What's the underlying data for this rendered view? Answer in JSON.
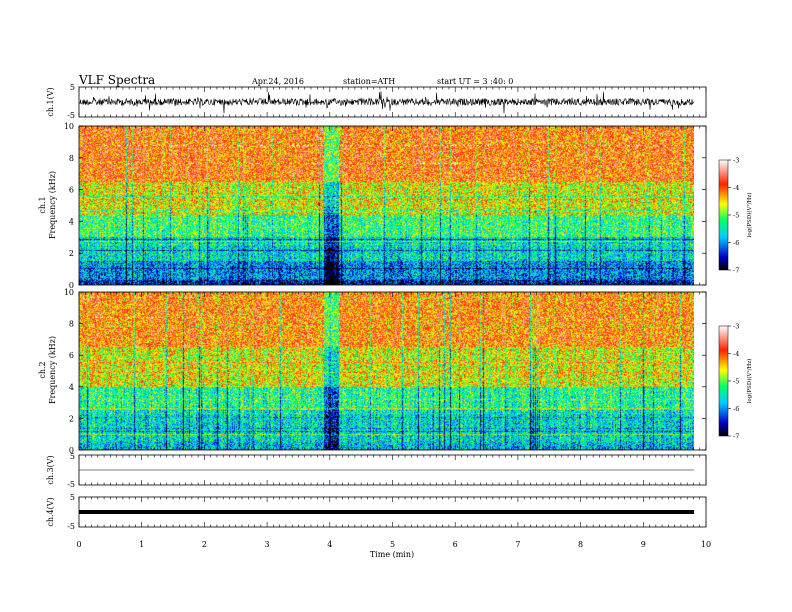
{
  "header": {
    "title": "VLF  Spectra",
    "date": "Apr.24, 2016",
    "station": "station=ATH",
    "start": "start  UT =  3 :40: 0"
  },
  "chart_data": [
    {
      "type": "line",
      "id": "ch1",
      "ylabel": "ch.1(V)",
      "ylim": [
        -5,
        5
      ],
      "yticks": [
        "5",
        "-5"
      ],
      "xlim": [
        0,
        10
      ]
    },
    {
      "type": "heatmap",
      "id": "spec1",
      "ylabel": "ch.1",
      "ylabel2": "Frequency (kHz)",
      "ylim": [
        0,
        10
      ],
      "yticks": [
        "0",
        "2",
        "4",
        "6",
        "8",
        "10"
      ],
      "xlim": [
        0,
        10
      ],
      "colorbar": {
        "ticks": [
          "-3",
          "-4",
          "-5",
          "-6",
          "-7"
        ],
        "label": "log(PSD)(V²/Hz)",
        "range": [
          -7,
          -3
        ]
      },
      "bands": [
        {
          "freq": [
            0,
            0.3
          ],
          "level": -6.5
        },
        {
          "freq": [
            0.3,
            1.5
          ],
          "level": -6.0
        },
        {
          "freq": [
            1.5,
            3.0
          ],
          "level": -5.6
        },
        {
          "freq": [
            3.0,
            4.5
          ],
          "level": -5.2
        },
        {
          "freq": [
            4.5,
            6.5
          ],
          "level": -4.6
        },
        {
          "freq": [
            6.5,
            10
          ],
          "level": -4.0
        }
      ]
    },
    {
      "type": "heatmap",
      "id": "spec2",
      "ylabel": "ch.2",
      "ylabel2": "Frequency (kHz)",
      "ylim": [
        0,
        10
      ],
      "yticks": [
        "0",
        "2",
        "4",
        "6",
        "8",
        "10"
      ],
      "xlim": [
        0,
        10
      ],
      "colorbar": {
        "ticks": [
          "-3",
          "-4",
          "-5",
          "-6",
          "-7"
        ],
        "label": "log(PSD)(V²/Hz)",
        "range": [
          -7,
          -3
        ]
      },
      "bands": [
        {
          "freq": [
            0,
            0.5
          ],
          "level": -5.8
        },
        {
          "freq": [
            0.5,
            2.5
          ],
          "level": -5.6
        },
        {
          "freq": [
            2.5,
            4.0
          ],
          "level": -5.3
        },
        {
          "freq": [
            4.0,
            6.5
          ],
          "level": -4.6
        },
        {
          "freq": [
            6.5,
            10
          ],
          "level": -4.1
        }
      ]
    },
    {
      "type": "line",
      "id": "ch3",
      "ylabel": "ch.3(V)",
      "ylim": [
        -5,
        5
      ],
      "yticks": [
        "5",
        "-5"
      ],
      "xlim": [
        0,
        10
      ]
    },
    {
      "type": "line",
      "id": "ch4",
      "ylabel": "ch.4(V)",
      "ylim": [
        -5,
        5
      ],
      "yticks": [
        "5",
        "-5"
      ],
      "xlim": [
        0,
        10
      ],
      "xlabel": "Time  (min)",
      "xticks": [
        "0",
        "1",
        "2",
        "3",
        "4",
        "5",
        "6",
        "7",
        "8",
        "9",
        "10"
      ]
    }
  ]
}
